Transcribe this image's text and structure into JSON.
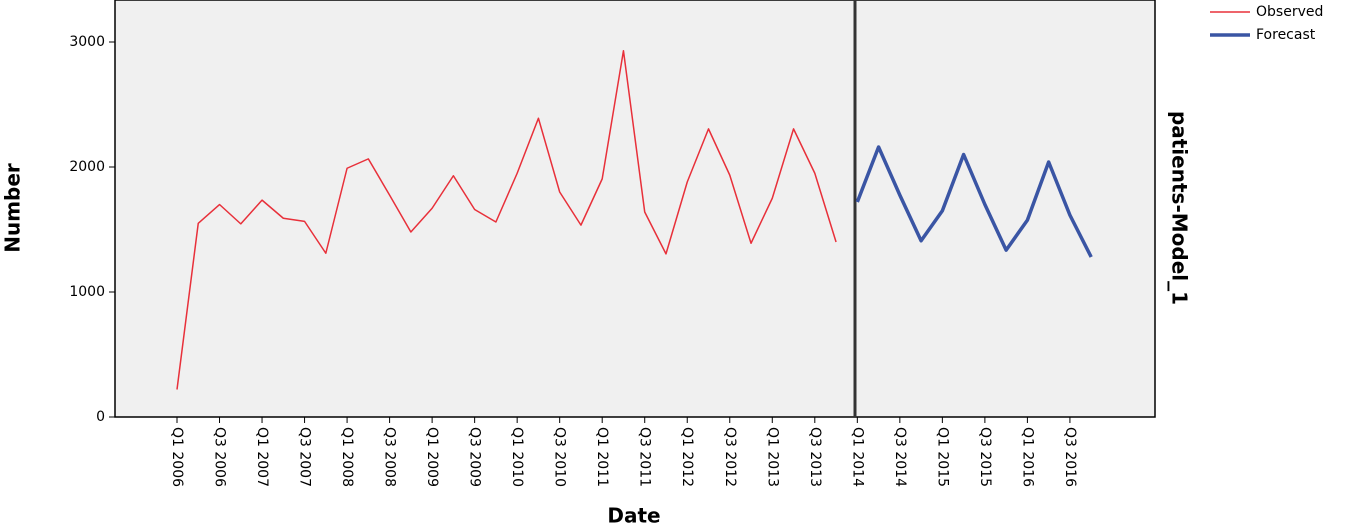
{
  "chart_data": {
    "type": "line",
    "y_label": "Number",
    "x_label": "Date",
    "panel_label": "patients-Model_1",
    "categories": [
      "Q1 2006",
      null,
      "Q3 2006",
      null,
      "Q1 2007",
      null,
      "Q3 2007",
      null,
      "Q1 2008",
      null,
      "Q3 2008",
      null,
      "Q1 2009",
      null,
      "Q3 2009",
      null,
      "Q1 2010",
      null,
      "Q3 2010",
      null,
      "Q1 2011",
      null,
      "Q3 2011",
      null,
      "Q1 2012",
      null,
      "Q3 2012",
      null,
      "Q1 2013",
      null,
      "Q3 2013",
      null,
      "Q1 2014",
      null,
      "Q3 2014",
      null,
      "Q1 2015",
      null,
      "Q3 2015",
      null,
      "Q1 2016",
      null,
      "Q3 2016",
      null
    ],
    "series": [
      {
        "name": "Observed",
        "color": "#e8303a",
        "values": [
          220,
          1550,
          1700,
          1545,
          1735,
          1590,
          1565,
          1310,
          1990,
          2065,
          1775,
          1480,
          1670,
          1930,
          1660,
          1560,
          1950,
          2390,
          1800,
          1535,
          1905,
          2930,
          1640,
          1305,
          1880,
          2305,
          1935,
          1390,
          1750,
          2305,
          1950,
          1400,
          null,
          null,
          null,
          null,
          null,
          null,
          null,
          null,
          null,
          null,
          null,
          null
        ]
      },
      {
        "name": "Forecast",
        "color": "#3a55a4",
        "values": [
          null,
          null,
          null,
          null,
          null,
          null,
          null,
          null,
          null,
          null,
          null,
          null,
          null,
          null,
          null,
          null,
          null,
          null,
          null,
          null,
          null,
          null,
          null,
          null,
          null,
          null,
          null,
          null,
          null,
          null,
          null,
          null,
          1720,
          2160,
          1775,
          1410,
          1650,
          2100,
          1700,
          1335,
          1575,
          2040,
          1615,
          1280
        ]
      }
    ],
    "ylim": [
      0,
      3336
    ],
    "yticks": [
      0,
      1000,
      2000,
      3000
    ],
    "grid": false,
    "legend": "top-right"
  }
}
